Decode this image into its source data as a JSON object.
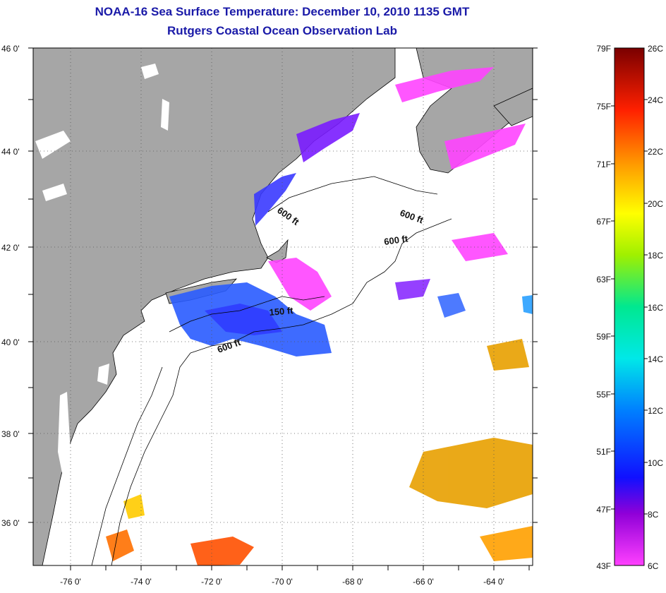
{
  "title": "NOAA-16 Sea Surface Temperature:  December 10, 2010 1135 GMT",
  "subtitle": "Rutgers Coastal Ocean Observation Lab",
  "lat_labels": [
    "46 0'",
    "44 0'",
    "42 0'",
    "40 0'",
    "38 0'",
    "36 0'"
  ],
  "lon_labels": [
    "-76 0'",
    "-74 0'",
    "-72 0'",
    "-70 0'",
    "-68 0'",
    "-66 0'",
    "-64 0'"
  ],
  "contour_labels": [
    "600 ft",
    "600 ft",
    "600 ft",
    "150 ft",
    "600 ft"
  ],
  "colorbar": {
    "f_labels": [
      "79F",
      "75F",
      "71F",
      "67F",
      "63F",
      "59F",
      "55F",
      "51F",
      "47F",
      "43F"
    ],
    "c_labels": [
      "26C",
      "24C",
      "22C",
      "20C",
      "18C",
      "16C",
      "14C",
      "12C",
      "10C",
      "8C",
      "6C"
    ]
  },
  "colors": {
    "land": "#a6a6a6",
    "title": "#1a1aa8"
  }
}
